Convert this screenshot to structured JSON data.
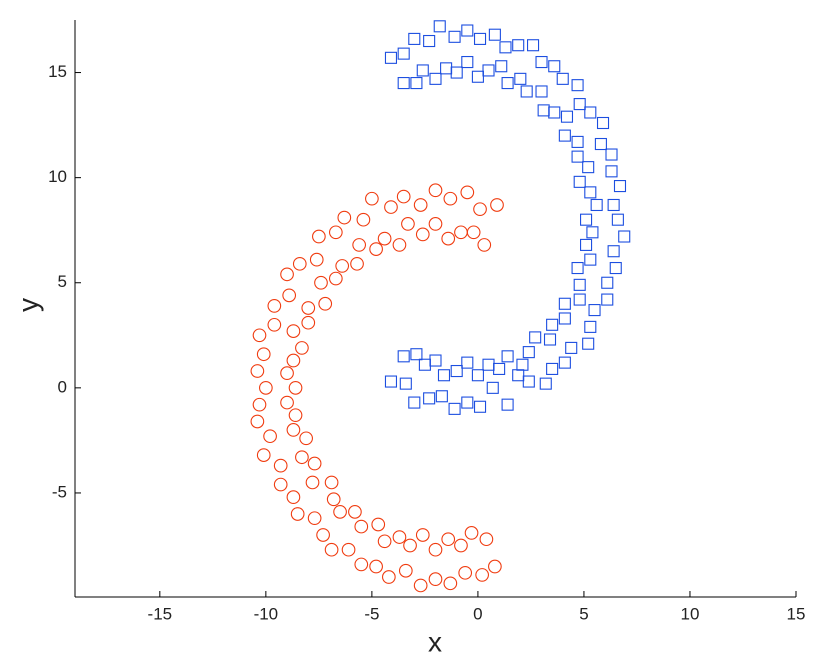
{
  "chart_data": {
    "type": "scatter",
    "xlabel": "x",
    "ylabel": "y",
    "xlim": [
      -19,
      15
    ],
    "ylim": [
      -9.95,
      17.5
    ],
    "xticks": [
      -15,
      -10,
      -5,
      0,
      5,
      10,
      15
    ],
    "yticks": [
      -5,
      0,
      5,
      10,
      15
    ],
    "series": [
      {
        "color": "#f03c10",
        "marker": "circle",
        "x": [
          0.3,
          0.9,
          -0.2,
          0.1,
          -0.8,
          -0.5,
          -1.4,
          -1.3,
          -2.0,
          -2.0,
          -2.6,
          -2.7,
          -3.3,
          -3.5,
          -3.7,
          -4.1,
          -4.4,
          -5.0,
          -4.8,
          -5.4,
          -5.6,
          -6.3,
          -5.7,
          -6.7,
          -6.4,
          -7.5,
          -6.7,
          -7.6,
          -7.4,
          -8.4,
          -7.2,
          -9.0,
          -8.0,
          -8.9,
          -8.0,
          -9.6,
          -8.7,
          -9.6,
          -8.3,
          -10.3,
          -8.7,
          -10.1,
          -9.0,
          -10.4,
          -8.6,
          -10.0,
          -9.0,
          -10.3,
          -8.6,
          -10.4,
          -8.7,
          -9.8,
          -8.1,
          -10.1,
          -8.3,
          -9.3,
          -7.7,
          -9.3,
          -7.8,
          -8.7,
          -6.9,
          -8.5,
          -6.8,
          -7.7,
          -6.5,
          -7.3,
          -5.8,
          -6.9,
          -5.5,
          -6.1,
          -4.7,
          -5.5,
          -4.4,
          -4.8,
          -3.7,
          -4.2,
          -3.2,
          -3.4,
          -2.6,
          -2.7,
          -2.0,
          -2.0,
          -1.4,
          -1.3,
          -0.8,
          -0.6,
          -0.3,
          0.2,
          0.4,
          0.8
        ],
        "y": [
          6.8,
          8.7,
          7.4,
          8.5,
          7.4,
          9.3,
          7.1,
          9.0,
          7.8,
          9.4,
          7.3,
          8.7,
          7.8,
          9.1,
          6.8,
          8.6,
          7.1,
          9.0,
          6.6,
          8.0,
          6.8,
          8.1,
          5.9,
          7.4,
          5.8,
          7.2,
          5.2,
          6.1,
          5.0,
          5.9,
          4.0,
          5.4,
          3.8,
          4.4,
          3.1,
          3.9,
          2.7,
          3.0,
          1.9,
          2.5,
          1.3,
          1.6,
          0.7,
          0.8,
          0.0,
          0.0,
          -0.7,
          -0.8,
          -1.3,
          -1.6,
          -2.0,
          -2.3,
          -2.4,
          -3.2,
          -3.3,
          -3.7,
          -3.6,
          -4.6,
          -4.5,
          -5.2,
          -4.5,
          -6.0,
          -5.3,
          -6.2,
          -5.9,
          -7.0,
          -5.9,
          -7.7,
          -6.6,
          -7.7,
          -6.5,
          -8.4,
          -7.3,
          -8.5,
          -7.1,
          -9.0,
          -7.5,
          -8.7,
          -7.0,
          -9.4,
          -7.7,
          -9.1,
          -7.2,
          -9.3,
          -7.5,
          -8.8,
          -6.9,
          -8.9,
          -7.2,
          -8.5
        ]
      },
      {
        "color": "#1c4ee0",
        "marker": "square",
        "x": [
          -3.5,
          -4.1,
          -2.9,
          -3.5,
          -2.6,
          -3.0,
          -2.0,
          -2.3,
          -1.5,
          -1.8,
          -1.0,
          -1.1,
          -0.5,
          -0.5,
          0.0,
          0.1,
          0.5,
          0.8,
          1.1,
          1.3,
          1.4,
          1.9,
          2.0,
          2.6,
          2.3,
          3.0,
          3.0,
          3.6,
          3.1,
          4.0,
          3.6,
          4.7,
          4.2,
          4.8,
          4.1,
          5.3,
          4.7,
          5.9,
          4.7,
          5.8,
          5.2,
          6.3,
          4.8,
          6.3,
          5.3,
          6.7,
          5.6,
          6.4,
          5.1,
          6.6,
          5.4,
          6.9,
          5.1,
          6.4,
          5.3,
          6.5,
          4.7,
          6.1,
          4.8,
          6.1,
          4.8,
          5.5,
          4.1,
          5.3,
          4.1,
          5.2,
          3.5,
          4.4,
          3.4,
          4.1,
          2.7,
          3.5,
          2.4,
          3.2,
          2.1,
          2.4,
          1.4,
          1.9,
          1.0,
          1.4,
          0.5,
          0.7,
          0.0,
          0.1,
          -0.5,
          -0.5,
          -1.0,
          -1.1,
          -1.6,
          -1.7,
          -2.0,
          -2.3,
          -2.5,
          -3.0,
          -2.9,
          -3.4,
          -3.5,
          -4.1
        ],
        "y": [
          14.5,
          15.7,
          14.5,
          15.9,
          15.1,
          16.6,
          14.7,
          16.5,
          15.2,
          17.2,
          15.0,
          16.7,
          15.5,
          17.0,
          14.8,
          16.6,
          15.1,
          16.8,
          15.3,
          16.2,
          14.5,
          16.3,
          14.7,
          16.3,
          14.1,
          15.5,
          14.1,
          15.3,
          13.2,
          14.7,
          13.1,
          14.4,
          12.9,
          13.5,
          12.0,
          13.1,
          11.7,
          12.6,
          11.0,
          11.6,
          10.5,
          11.1,
          9.8,
          10.3,
          9.3,
          9.6,
          8.7,
          8.7,
          8.0,
          8.0,
          7.4,
          7.2,
          6.8,
          6.5,
          6.1,
          5.7,
          5.7,
          5.0,
          4.9,
          4.2,
          4.2,
          3.7,
          4.0,
          2.9,
          3.3,
          2.1,
          3.0,
          1.9,
          2.3,
          1.2,
          2.4,
          0.9,
          1.7,
          0.2,
          1.1,
          0.3,
          1.5,
          0.6,
          0.9,
          -0.8,
          1.1,
          0.0,
          0.6,
          -0.9,
          1.2,
          -0.7,
          0.8,
          -1.0,
          0.6,
          -0.4,
          1.3,
          -0.5,
          1.1,
          -0.7,
          1.6,
          0.2,
          1.5,
          0.3
        ]
      }
    ]
  }
}
